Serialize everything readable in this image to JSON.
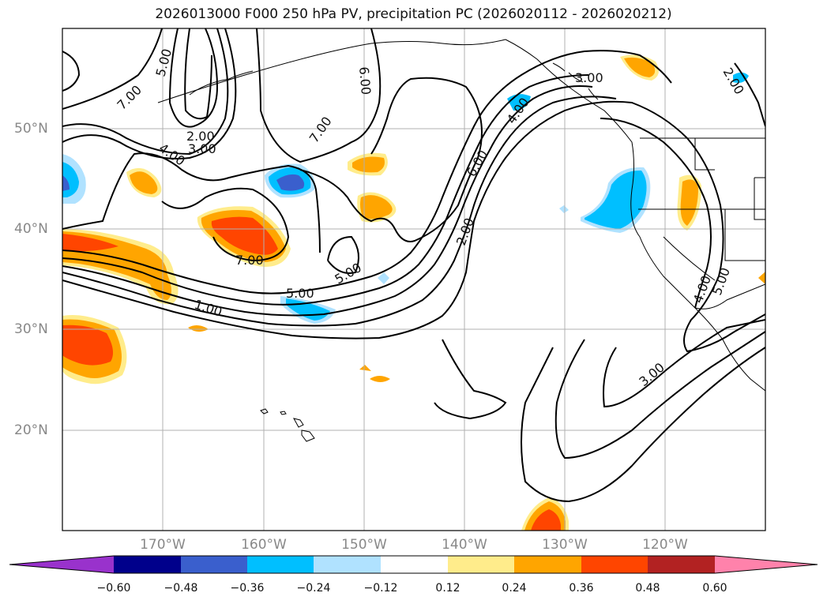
{
  "title": "2026013000 F000 250 hPa PV, precipitation PC (2026020112 - 2026020212)",
  "map": {
    "lat_ticks": [
      "50°N",
      "40°N",
      "30°N",
      "20°N"
    ],
    "lon_ticks": [
      "170°W",
      "160°W",
      "150°W",
      "140°W",
      "130°W",
      "120°W"
    ],
    "grid": true,
    "contour_color": "#000000",
    "contour_labels": [
      "7.00",
      "5.00",
      "6.00",
      "2.00",
      "4.00",
      "3.00",
      "7.00",
      "3.00",
      "4.00",
      "6.00",
      "2.00",
      "7.00",
      "5.00",
      "5.00",
      "1.00",
      "2.00",
      "4.00",
      "5.00",
      "3.00"
    ]
  },
  "colorbar": {
    "ticks": [
      "−0.60",
      "−0.48",
      "−0.36",
      "−0.24",
      "−0.12",
      "0.12",
      "0.24",
      "0.36",
      "0.48",
      "0.60"
    ],
    "colors": [
      "#9932cc",
      "#00008b",
      "#3a5fcd",
      "#00bfff",
      "#b0e2ff",
      "#ffffff",
      "#ffec8b",
      "#ffa500",
      "#ff4500",
      "#b22222",
      "#ff82ab"
    ],
    "extend": "both"
  },
  "shading_colors": {
    "light_pos": "#ffec8b",
    "pos": "#ffa500",
    "strong_pos": "#ff4500",
    "light_neg": "#b0e2ff",
    "neg": "#00bfff",
    "strong_neg": "#3a5fcd"
  }
}
